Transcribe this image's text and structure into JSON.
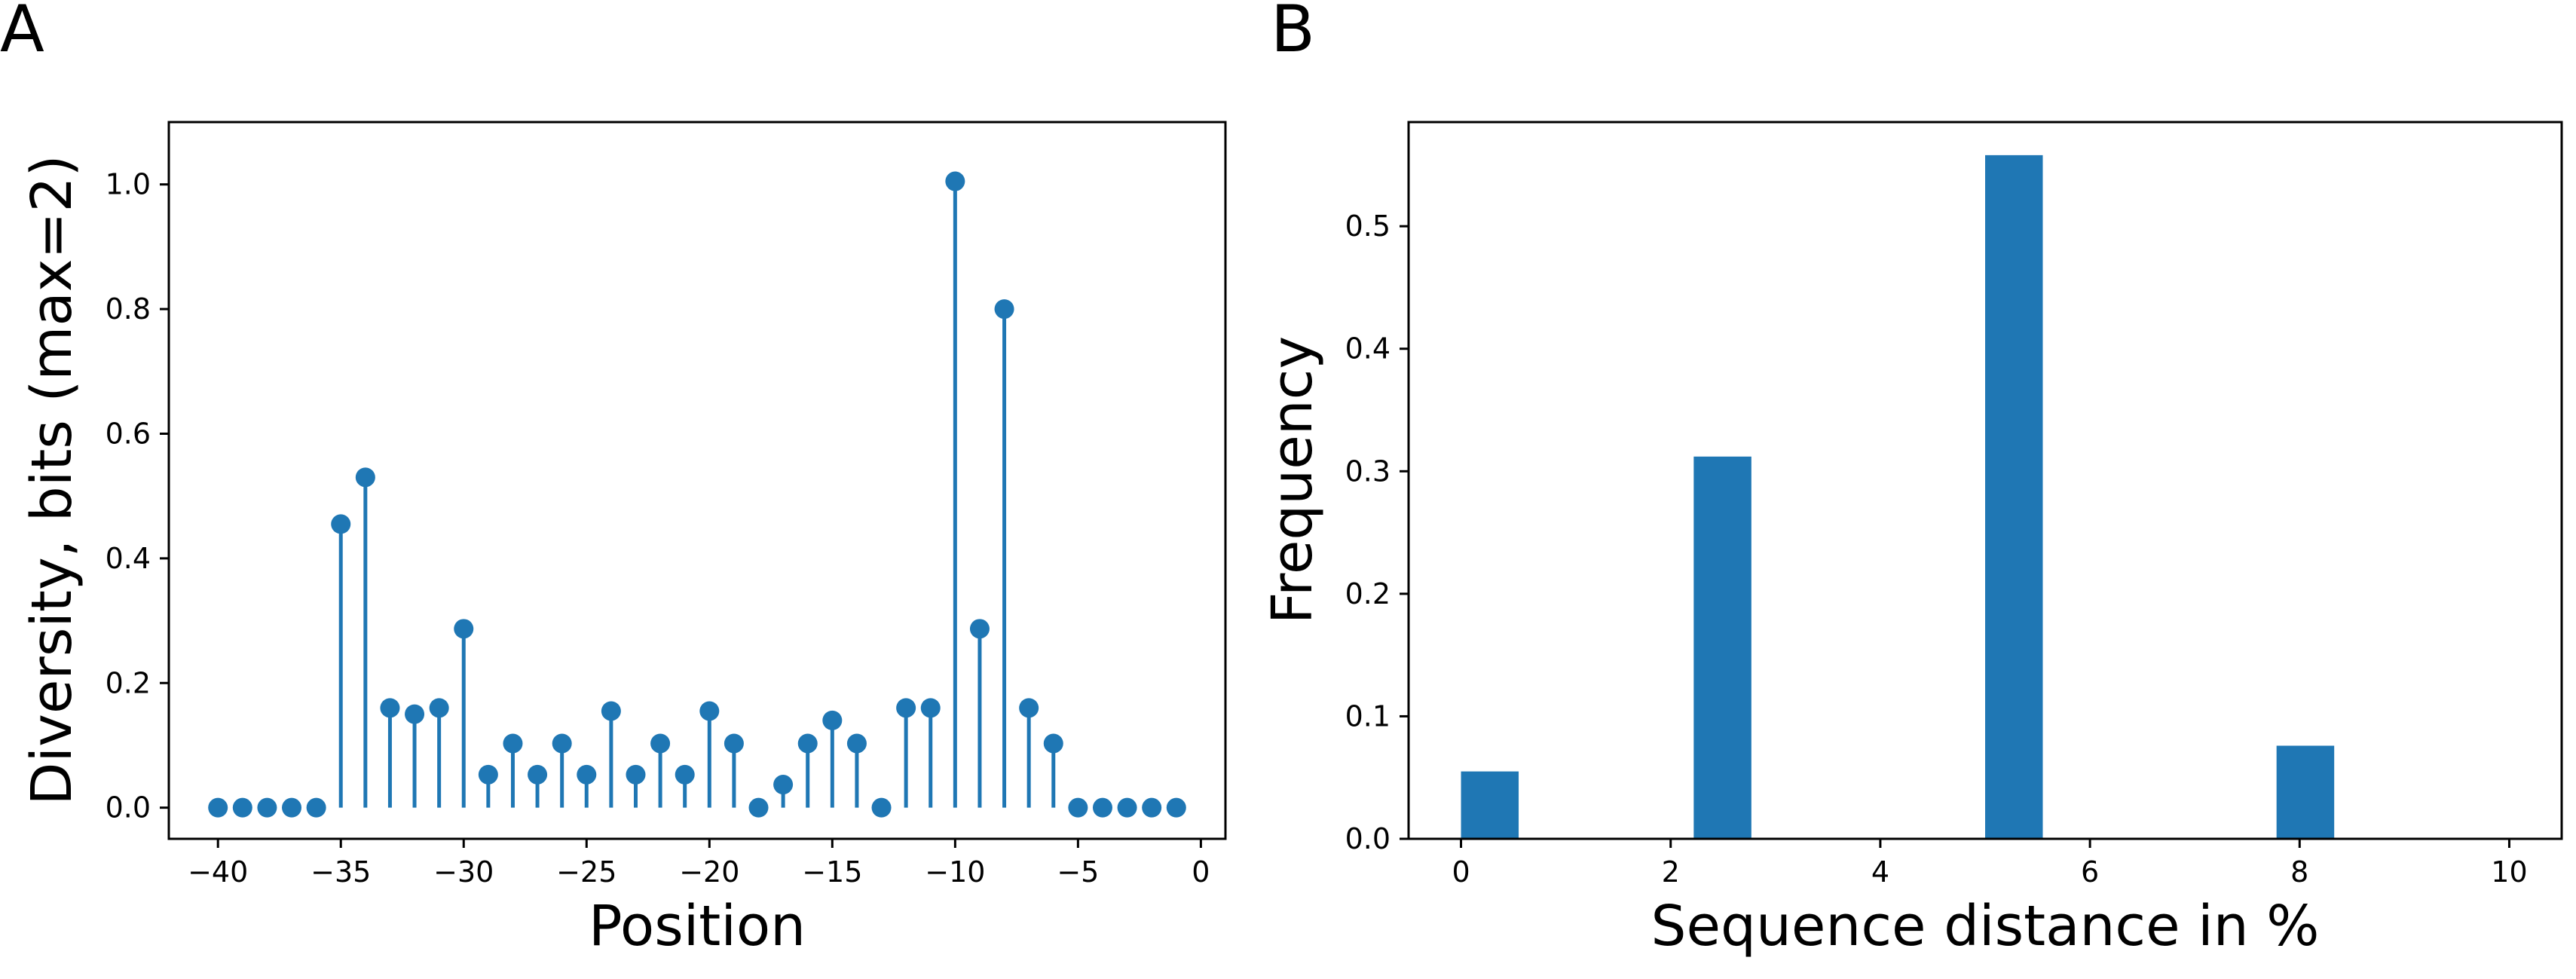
{
  "colors": {
    "series": "#1f77b4",
    "axis": "#000000",
    "background": "#ffffff"
  },
  "chart_data": [
    {
      "panel_label": "A",
      "type": "stem",
      "title": "",
      "xlabel": "Position",
      "ylabel": "Diversity, bits (max=2)",
      "xlim": [
        -42,
        1
      ],
      "ylim": [
        -0.05,
        1.1
      ],
      "xticks": [
        -40,
        -35,
        -30,
        -25,
        -20,
        -15,
        -10,
        -5,
        0
      ],
      "xtick_labels": [
        "−40",
        "−35",
        "−30",
        "−25",
        "−20",
        "−15",
        "−10",
        "−5",
        "0"
      ],
      "yticks": [
        0.0,
        0.2,
        0.4,
        0.6,
        0.8,
        1.0
      ],
      "ytick_labels": [
        "0.0",
        "0.2",
        "0.4",
        "0.6",
        "0.8",
        "1.0"
      ],
      "grid": false,
      "x": [
        -40,
        -39,
        -38,
        -37,
        -36,
        -35,
        -34,
        -33,
        -32,
        -31,
        -30,
        -29,
        -28,
        -27,
        -26,
        -25,
        -24,
        -23,
        -22,
        -21,
        -20,
        -19,
        -18,
        -17,
        -16,
        -15,
        -14,
        -13,
        -12,
        -11,
        -10,
        -9,
        -8,
        -7,
        -6,
        -5,
        -4,
        -3,
        -2,
        -1
      ],
      "y": [
        0.0,
        0.0,
        0.0,
        0.0,
        0.0,
        0.455,
        0.53,
        0.16,
        0.15,
        0.16,
        0.287,
        0.053,
        0.103,
        0.053,
        0.103,
        0.053,
        0.155,
        0.053,
        0.103,
        0.053,
        0.155,
        0.103,
        0.0,
        0.037,
        0.103,
        0.14,
        0.103,
        0.0,
        0.16,
        0.16,
        1.005,
        0.287,
        0.8,
        0.16,
        0.103,
        0.0,
        0.0,
        0.0,
        0.0,
        0.0
      ]
    },
    {
      "panel_label": "B",
      "type": "bar",
      "title": "",
      "xlabel": "Sequence distance in %",
      "ylabel": "Frequency",
      "xlim": [
        -0.5,
        10.5
      ],
      "ylim": [
        0,
        0.585
      ],
      "xticks": [
        0,
        2,
        4,
        6,
        8,
        10
      ],
      "xtick_labels": [
        "0",
        "2",
        "4",
        "6",
        "8",
        "10"
      ],
      "yticks": [
        0.0,
        0.1,
        0.2,
        0.3,
        0.4,
        0.5
      ],
      "ytick_labels": [
        "0.0",
        "0.1",
        "0.2",
        "0.3",
        "0.4",
        "0.5"
      ],
      "grid": false,
      "bar_width": 0.55,
      "bars": [
        {
          "x": 0.0,
          "value": 0.055
        },
        {
          "x": 2.22,
          "value": 0.312
        },
        {
          "x": 5.0,
          "value": 0.558
        },
        {
          "x": 7.78,
          "value": 0.076
        }
      ]
    }
  ]
}
